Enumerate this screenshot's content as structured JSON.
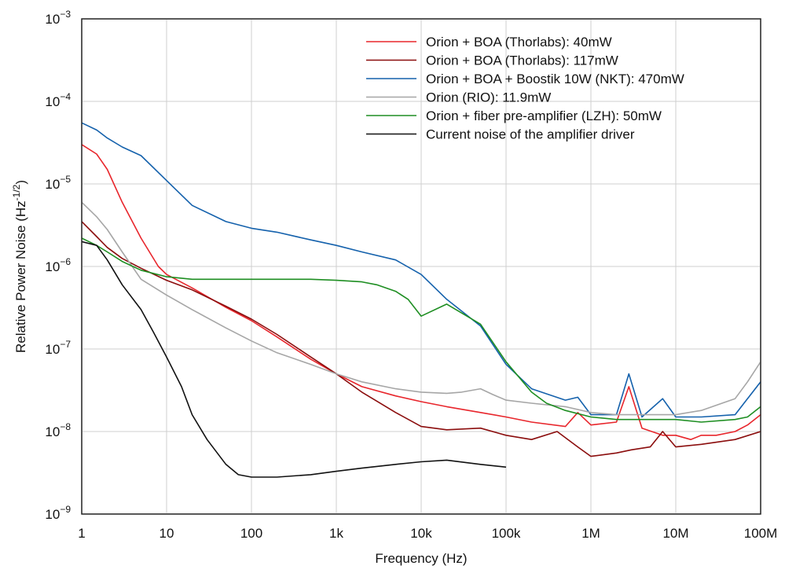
{
  "chart_data": {
    "type": "line",
    "xlabel": "Frequency (Hz)",
    "ylabel": "Relative Power Noise (Hz",
    "ylabel_superscript": "-1/2",
    "ylabel_suffix": ")",
    "x_scale": "log",
    "y_scale": "log",
    "xlim": [
      1,
      100000000
    ],
    "ylim": [
      1e-09,
      0.001
    ],
    "grid": true,
    "legend_position": "top-right",
    "x_ticks": [
      {
        "value": 1,
        "label": "1"
      },
      {
        "value": 10,
        "label": "10"
      },
      {
        "value": 100,
        "label": "100"
      },
      {
        "value": 1000,
        "label": "1k"
      },
      {
        "value": 10000,
        "label": "10k"
      },
      {
        "value": 100000,
        "label": "100k"
      },
      {
        "value": 1000000,
        "label": "1M"
      },
      {
        "value": 10000000,
        "label": "10M"
      },
      {
        "value": 100000000,
        "label": "100M"
      }
    ],
    "y_ticks": [
      {
        "value": 0.001,
        "base": "10",
        "exp": "−3"
      },
      {
        "value": 0.0001,
        "base": "10",
        "exp": "−4"
      },
      {
        "value": 1e-05,
        "base": "10",
        "exp": "−5"
      },
      {
        "value": 1e-06,
        "base": "10",
        "exp": "−6"
      },
      {
        "value": 1e-07,
        "base": "10",
        "exp": "−7"
      },
      {
        "value": 1e-08,
        "base": "10",
        "exp": "−8"
      },
      {
        "value": 1e-09,
        "base": "10",
        "exp": "−9"
      }
    ],
    "series": [
      {
        "name": "Orion + BOA (Thorlabs): 40mW",
        "color": "#e8262c",
        "x": [
          1,
          1.5,
          2,
          3,
          5,
          8,
          10,
          20,
          50,
          100,
          200,
          500,
          1000,
          2000,
          5000,
          10000,
          20000,
          50000,
          100000,
          200000,
          500000,
          700000,
          1000000,
          2000000,
          2800000,
          4000000,
          7000000,
          10000000,
          15000000,
          20000000,
          30000000,
          50000000,
          70000000,
          100000000
        ],
        "y": [
          3e-05,
          2.3e-05,
          1.5e-05,
          6e-06,
          2.2e-06,
          1e-06,
          8e-07,
          5.5e-07,
          3.2e-07,
          2.2e-07,
          1.4e-07,
          7.5e-08,
          5e-08,
          3.5e-08,
          2.7e-08,
          2.3e-08,
          2e-08,
          1.7e-08,
          1.5e-08,
          1.3e-08,
          1.15e-08,
          1.7e-08,
          1.2e-08,
          1.3e-08,
          3.5e-08,
          1.1e-08,
          9e-09,
          9e-09,
          8e-09,
          9e-09,
          9e-09,
          1e-08,
          1.2e-08,
          1.6e-08
        ]
      },
      {
        "name": "Orion + BOA (Thorlabs): 117mW",
        "color": "#8b0d0d",
        "x": [
          1,
          1.5,
          2,
          3,
          5,
          10,
          20,
          50,
          100,
          200,
          500,
          1000,
          2000,
          5000,
          10000,
          20000,
          50000,
          100000,
          200000,
          400000,
          700000,
          1000000,
          2000000,
          3000000,
          5000000,
          7000000,
          10000000,
          20000000,
          50000000,
          100000000
        ],
        "y": [
          3.5e-06,
          2.3e-06,
          1.7e-06,
          1.25e-06,
          9.5e-07,
          6.8e-07,
          5.2e-07,
          3.3e-07,
          2.3e-07,
          1.5e-07,
          8e-08,
          5e-08,
          3e-08,
          1.7e-08,
          1.15e-08,
          1.05e-08,
          1.1e-08,
          9e-09,
          8e-09,
          1e-08,
          6.5e-09,
          5e-09,
          5.5e-09,
          6e-09,
          6.5e-09,
          1e-08,
          6.5e-09,
          7e-09,
          8e-09,
          1e-08
        ]
      },
      {
        "name": "Orion + BOA + Boostik 10W (NKT): 470mW",
        "color": "#1461ac",
        "x": [
          1,
          1.5,
          2,
          3,
          5,
          10,
          20,
          50,
          100,
          200,
          500,
          1000,
          2000,
          5000,
          10000,
          20000,
          50000,
          100000,
          200000,
          500000,
          700000,
          1000000,
          2000000,
          2800000,
          4000000,
          7000000,
          10000000,
          20000000,
          50000000,
          70000000,
          100000000
        ],
        "y": [
          5.5e-05,
          4.5e-05,
          3.6e-05,
          2.8e-05,
          2.2e-05,
          1.1e-05,
          5.5e-06,
          3.5e-06,
          2.9e-06,
          2.6e-06,
          2.1e-06,
          1.8e-06,
          1.5e-06,
          1.2e-06,
          8e-07,
          4e-07,
          1.9e-07,
          6.5e-08,
          3.3e-08,
          2.4e-08,
          2.6e-08,
          1.6e-08,
          1.6e-08,
          5e-08,
          1.5e-08,
          2.5e-08,
          1.5e-08,
          1.5e-08,
          1.6e-08,
          2.5e-08,
          4e-08
        ]
      },
      {
        "name": "Orion (RIO): 11.9mW",
        "color": "#a6a6a6",
        "x": [
          1,
          1.5,
          2,
          3,
          5,
          10,
          20,
          50,
          100,
          200,
          500,
          1000,
          2000,
          5000,
          10000,
          20000,
          30000,
          50000,
          70000,
          100000,
          200000,
          500000,
          1000000,
          2000000,
          5000000,
          10000000,
          20000000,
          50000000,
          70000000,
          100000000
        ],
        "y": [
          6e-06,
          4e-06,
          2.8e-06,
          1.5e-06,
          7e-07,
          4.5e-07,
          3e-07,
          1.8e-07,
          1.25e-07,
          9e-08,
          6.5e-08,
          5e-08,
          4e-08,
          3.3e-08,
          3e-08,
          2.9e-08,
          3e-08,
          3.3e-08,
          2.8e-08,
          2.4e-08,
          2.2e-08,
          2e-08,
          1.7e-08,
          1.6e-08,
          1.6e-08,
          1.6e-08,
          1.8e-08,
          2.5e-08,
          4e-08,
          7e-08
        ]
      },
      {
        "name": "Orion + fiber pre-amplifier (LZH): 50mW",
        "color": "#1e8e22",
        "x": [
          1,
          1.5,
          2,
          3,
          5,
          10,
          20,
          50,
          100,
          200,
          500,
          1000,
          2000,
          3000,
          5000,
          7000,
          10000,
          20000,
          50000,
          100000,
          200000,
          300000,
          500000,
          1000000,
          2000000,
          5000000,
          10000000,
          20000000,
          50000000,
          70000000,
          100000000
        ],
        "y": [
          2.2e-06,
          1.8e-06,
          1.5e-06,
          1.15e-06,
          9e-07,
          7.5e-07,
          7e-07,
          7e-07,
          7e-07,
          7e-07,
          7e-07,
          6.8e-07,
          6.5e-07,
          6e-07,
          5e-07,
          4e-07,
          2.5e-07,
          3.5e-07,
          2e-07,
          7e-08,
          3e-08,
          2.2e-08,
          1.8e-08,
          1.5e-08,
          1.4e-08,
          1.4e-08,
          1.4e-08,
          1.3e-08,
          1.4e-08,
          1.5e-08,
          2e-08
        ]
      },
      {
        "name": "Current noise of the amplifier driver",
        "color": "#111111",
        "x": [
          1,
          1.5,
          2,
          3,
          5,
          7,
          10,
          15,
          20,
          30,
          50,
          70,
          100,
          200,
          500,
          1000,
          2000,
          5000,
          10000,
          20000,
          50000,
          100000
        ],
        "y": [
          2e-06,
          1.8e-06,
          1.2e-06,
          6e-07,
          3e-07,
          1.6e-07,
          8e-08,
          3.5e-08,
          1.6e-08,
          8e-09,
          4e-09,
          3e-09,
          2.8e-09,
          2.8e-09,
          3e-09,
          3.3e-09,
          3.6e-09,
          4e-09,
          4.3e-09,
          4.5e-09,
          4e-09,
          3.7e-09
        ]
      }
    ]
  }
}
